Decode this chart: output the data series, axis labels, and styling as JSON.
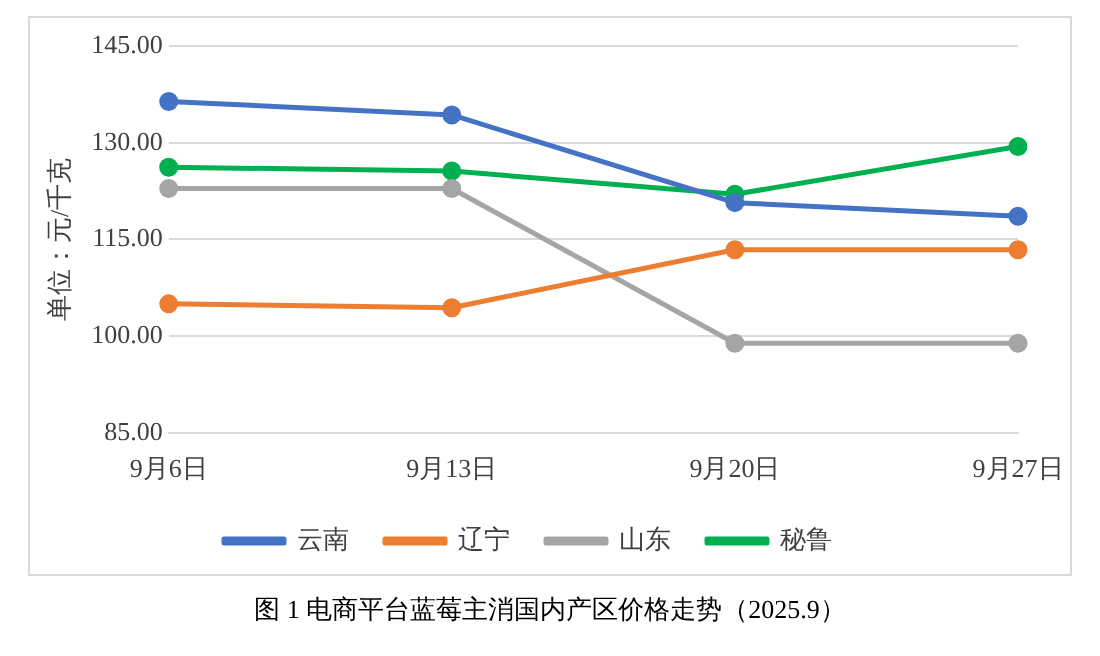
{
  "chart_data": {
    "type": "line",
    "title": "图 1  电商平台蓝莓主消国内产区价格走势（2025.9）",
    "ylabel": "单位：元/千克",
    "categories": [
      "9月6日",
      "9月13日",
      "9月20日",
      "9月27日"
    ],
    "series": [
      {
        "name": "云南",
        "color": "#4472c4",
        "values": [
          136.4,
          134.3,
          120.7,
          118.6
        ]
      },
      {
        "name": "辽宁",
        "color": "#ed7d31",
        "values": [
          105.0,
          104.4,
          113.4,
          113.4
        ]
      },
      {
        "name": "山东",
        "color": "#a5a5a5",
        "values": [
          122.9,
          122.9,
          98.9,
          98.9
        ]
      },
      {
        "name": "秘鲁",
        "color": "#00b050",
        "values": [
          126.2,
          125.6,
          122.0,
          129.4
        ]
      }
    ],
    "ylim": [
      85,
      145
    ],
    "yticks": [
      {
        "value": 85,
        "label": "85.00"
      },
      {
        "value": 100,
        "label": "100.00"
      },
      {
        "value": 115,
        "label": "115.00"
      },
      {
        "value": 130,
        "label": "130.00"
      },
      {
        "value": 145,
        "label": "145.00"
      }
    ],
    "grid": "y",
    "legend": "bottom",
    "marker": "circle",
    "line_style": "solid"
  }
}
